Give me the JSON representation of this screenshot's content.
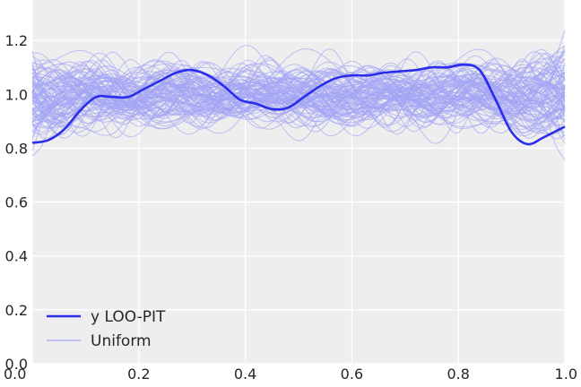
{
  "chart_data": {
    "type": "line",
    "title": "",
    "xlabel": "",
    "ylabel": "",
    "xlim": [
      0.0,
      1.0
    ],
    "ylim": [
      0.0,
      1.35
    ],
    "grid": true,
    "legend_position": "bottom-left",
    "x_ticks": [
      "0.0",
      "0.2",
      "0.4",
      "0.6",
      "0.8",
      "1.0"
    ],
    "y_ticks": [
      "0.0",
      "0.2",
      "0.4",
      "0.6",
      "0.8",
      "1.0",
      "1.2"
    ],
    "colors": {
      "background": "#eeeeee",
      "grid": "#ffffff",
      "loo_pit": "#2a2eec",
      "uniform": "#a3a4f5"
    },
    "uniform_samples": {
      "count": 100,
      "name": "Uniform"
    },
    "series": [
      {
        "name": "y LOO-PIT",
        "x": [
          0.0,
          0.03,
          0.06,
          0.09,
          0.12,
          0.15,
          0.18,
          0.21,
          0.24,
          0.27,
          0.3,
          0.33,
          0.36,
          0.39,
          0.42,
          0.45,
          0.48,
          0.51,
          0.54,
          0.57,
          0.6,
          0.63,
          0.66,
          0.69,
          0.72,
          0.75,
          0.78,
          0.81,
          0.84,
          0.87,
          0.9,
          0.93,
          0.96,
          1.0
        ],
        "y": [
          0.82,
          0.83,
          0.87,
          0.94,
          0.99,
          0.99,
          0.99,
          1.02,
          1.05,
          1.08,
          1.09,
          1.07,
          1.03,
          0.98,
          0.965,
          0.945,
          0.95,
          0.99,
          1.03,
          1.06,
          1.07,
          1.07,
          1.08,
          1.085,
          1.09,
          1.1,
          1.1,
          1.11,
          1.09,
          0.98,
          0.86,
          0.815,
          0.84,
          0.88
        ]
      }
    ]
  }
}
